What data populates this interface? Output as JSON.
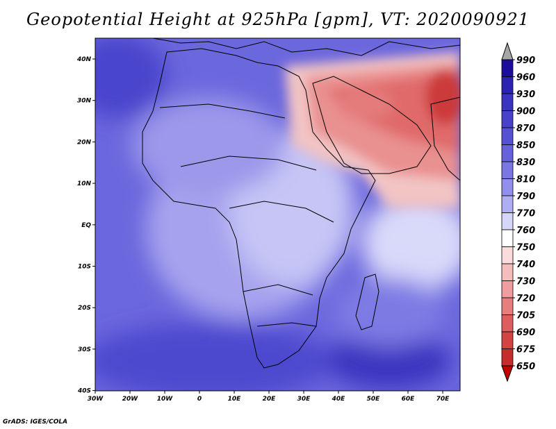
{
  "title": "Geopotential Height at 925hPa [gpm], VT: 2020090921",
  "footer": "GrADS: IGES/COLA",
  "lat_labels": [
    "40N",
    "30N",
    "20N",
    "10N",
    "EQ",
    "10S",
    "20S",
    "30S",
    "40S"
  ],
  "lon_labels": [
    "30W",
    "20W",
    "10W",
    "0",
    "10E",
    "20E",
    "30E",
    "40E",
    "50E",
    "60E",
    "70E"
  ],
  "colorbar": {
    "labels": [
      "990",
      "960",
      "930",
      "900",
      "870",
      "850",
      "830",
      "810",
      "790",
      "770",
      "760",
      "750",
      "740",
      "730",
      "720",
      "705",
      "690",
      "675",
      "650"
    ],
    "colors": [
      "#a6a6a6",
      "#1c0e9a",
      "#2b22b0",
      "#3a34c0",
      "#4842ca",
      "#5650d2",
      "#6662da",
      "#7a76e2",
      "#9290ea",
      "#b0aef2",
      "#d6d6f8",
      "#ffffff",
      "#fbdcdc",
      "#f5bcbc",
      "#ee9e9e",
      "#e67e7e",
      "#dc5e5e",
      "#d24444",
      "#c72c2c",
      "#bd1f1f",
      "#c00000"
    ]
  },
  "colors": {
    "ocean_base": "#6b67dd",
    "land_mid": "#b3b1f2",
    "hot_low": "#e88a8a",
    "hot_core": "#d84c4c"
  }
}
